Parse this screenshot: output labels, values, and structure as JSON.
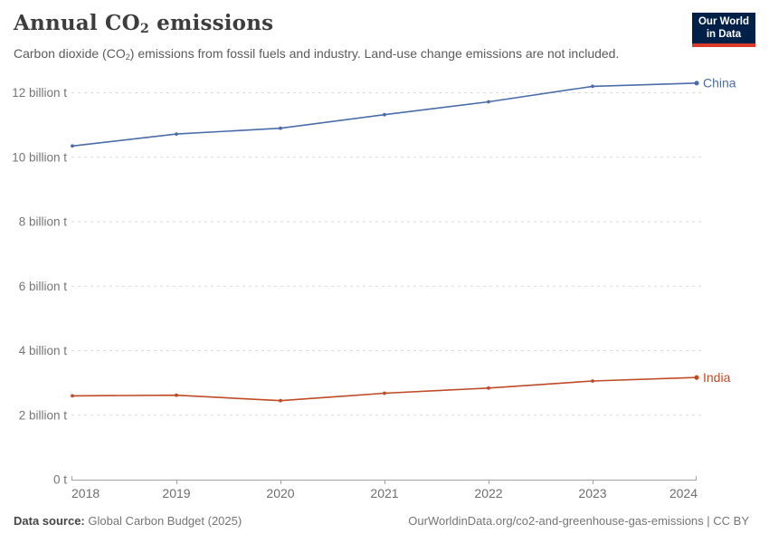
{
  "header": {
    "title": {
      "pre": "Annual CO",
      "sub": "2",
      "post": " emissions"
    },
    "subtitle": {
      "pre": "Carbon dioxide (CO",
      "sub": "2",
      "post": ") emissions from fossil fuels and industry. Land-use change emissions are not included."
    },
    "logo": {
      "line1": "Our World",
      "line2": "in Data"
    }
  },
  "chart_data": {
    "type": "line",
    "title": "Annual CO₂ emissions",
    "subtitle": "Carbon dioxide (CO₂) emissions from fossil fuels and industry. Land-use change emissions are not included.",
    "x": [
      2018,
      2019,
      2020,
      2021,
      2022,
      2023,
      2024
    ],
    "x_tick_labels": [
      "2018",
      "2019",
      "2020",
      "2021",
      "2022",
      "2023",
      "2024"
    ],
    "series": [
      {
        "name": "China",
        "color": "#4a6ca8",
        "values": [
          10.35,
          10.72,
          10.9,
          11.32,
          11.72,
          12.2,
          12.3
        ]
      },
      {
        "name": "India",
        "color": "#bf4a26",
        "values": [
          2.6,
          2.62,
          2.45,
          2.68,
          2.84,
          3.06,
          3.17
        ]
      }
    ],
    "ylabel": "",
    "xlabel": "",
    "ylim": [
      0,
      12.6
    ],
    "y_ticks": [
      0,
      2,
      4,
      6,
      8,
      10,
      12
    ],
    "y_tick_labels": [
      "0 t",
      "2 billion t",
      "4 billion t",
      "6 billion t",
      "8 billion t",
      "10 billion t",
      "12 billion t"
    ],
    "grid": "horizontal dashed",
    "legend_position": "end-of-line labels"
  },
  "footer": {
    "source_label": "Data source:",
    "source_value": " Global Carbon Budget (2025)",
    "link": "OurWorldinData.org/co2-and-greenhouse-gas-emissions | CC BY"
  }
}
